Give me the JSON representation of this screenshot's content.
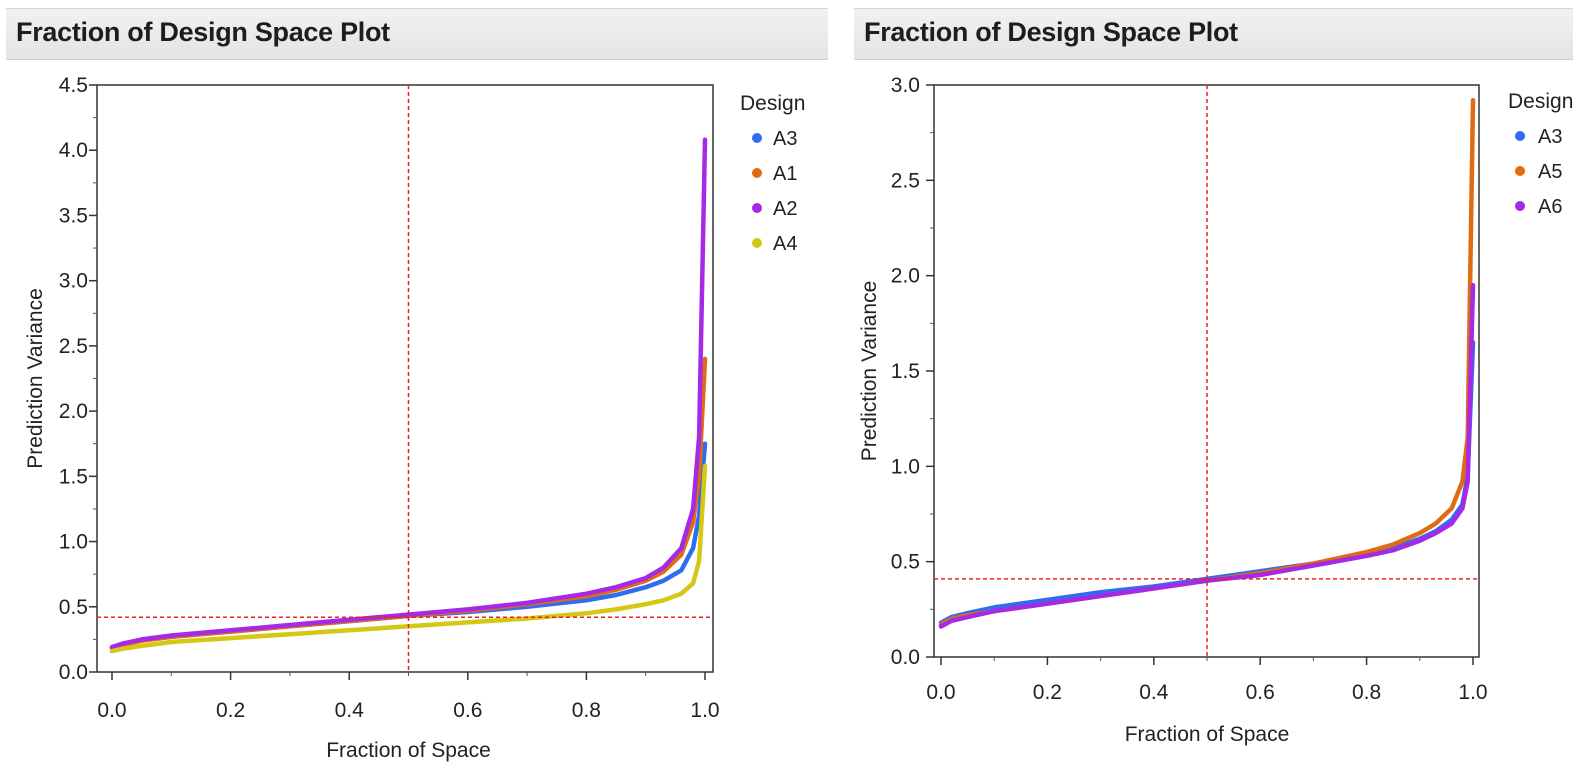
{
  "panels": [
    {
      "title": "Fraction of Design Space Plot"
    },
    {
      "title": "Fraction of Design Space Plot"
    }
  ],
  "chart_data": [
    {
      "type": "line",
      "title": "Fraction of Design Space Plot",
      "xlabel": "Fraction of Space",
      "ylabel": "Prediction Variance",
      "xlim": [
        0,
        1
      ],
      "ylim": [
        0,
        4.5
      ],
      "xticks": [
        "0.0",
        "0.2",
        "0.4",
        "0.6",
        "0.8",
        "1.0"
      ],
      "yticks": [
        "0.0",
        "0.5",
        "1.0",
        "1.5",
        "2.0",
        "2.5",
        "3.0",
        "3.5",
        "4.0",
        "4.5"
      ],
      "legend_title": "Design",
      "legend_position": "right",
      "reference_lines": {
        "x": 0.5,
        "y": 0.42,
        "color": "#e8202a"
      },
      "series": [
        {
          "name": "A3",
          "color": "#2f6df0",
          "x": [
            0,
            0.02,
            0.05,
            0.1,
            0.2,
            0.3,
            0.4,
            0.5,
            0.6,
            0.7,
            0.8,
            0.85,
            0.9,
            0.93,
            0.96,
            0.98,
            0.99,
            1.0
          ],
          "y": [
            0.19,
            0.22,
            0.24,
            0.27,
            0.31,
            0.35,
            0.39,
            0.43,
            0.46,
            0.5,
            0.55,
            0.59,
            0.65,
            0.7,
            0.78,
            0.95,
            1.2,
            1.75
          ]
        },
        {
          "name": "A1",
          "color": "#e06b10",
          "x": [
            0,
            0.02,
            0.05,
            0.1,
            0.2,
            0.3,
            0.4,
            0.5,
            0.6,
            0.7,
            0.8,
            0.85,
            0.9,
            0.93,
            0.96,
            0.98,
            0.99,
            1.0
          ],
          "y": [
            0.18,
            0.21,
            0.24,
            0.27,
            0.31,
            0.35,
            0.39,
            0.43,
            0.47,
            0.52,
            0.58,
            0.63,
            0.7,
            0.77,
            0.9,
            1.15,
            1.5,
            2.4
          ]
        },
        {
          "name": "A2",
          "color": "#a42ae8",
          "x": [
            0,
            0.02,
            0.05,
            0.1,
            0.2,
            0.3,
            0.4,
            0.5,
            0.6,
            0.7,
            0.8,
            0.85,
            0.9,
            0.93,
            0.96,
            0.98,
            0.99,
            1.0
          ],
          "y": [
            0.19,
            0.22,
            0.25,
            0.28,
            0.32,
            0.36,
            0.4,
            0.44,
            0.48,
            0.53,
            0.6,
            0.65,
            0.72,
            0.8,
            0.95,
            1.25,
            1.8,
            4.08
          ]
        },
        {
          "name": "A4",
          "color": "#d4c814",
          "x": [
            0,
            0.02,
            0.05,
            0.1,
            0.2,
            0.3,
            0.4,
            0.5,
            0.6,
            0.7,
            0.8,
            0.85,
            0.9,
            0.93,
            0.96,
            0.98,
            0.99,
            1.0
          ],
          "y": [
            0.16,
            0.18,
            0.2,
            0.23,
            0.26,
            0.29,
            0.32,
            0.35,
            0.38,
            0.41,
            0.45,
            0.48,
            0.52,
            0.55,
            0.6,
            0.68,
            0.85,
            1.58
          ]
        }
      ]
    },
    {
      "type": "line",
      "title": "Fraction of Design Space Plot",
      "xlabel": "Fraction of Space",
      "ylabel": "Prediction Variance",
      "xlim": [
        0,
        1
      ],
      "ylim": [
        0,
        3.0
      ],
      "xticks": [
        "0.0",
        "0.2",
        "0.4",
        "0.6",
        "0.8",
        "1.0"
      ],
      "yticks": [
        "0.0",
        "0.5",
        "1.0",
        "1.5",
        "2.0",
        "2.5",
        "3.0"
      ],
      "legend_title": "Design",
      "legend_position": "right",
      "reference_lines": {
        "x": 0.5,
        "y": 0.41,
        "color": "#e8202a"
      },
      "series": [
        {
          "name": "A3",
          "color": "#2f6df0",
          "x": [
            0,
            0.02,
            0.05,
            0.1,
            0.2,
            0.3,
            0.4,
            0.5,
            0.6,
            0.7,
            0.8,
            0.85,
            0.9,
            0.93,
            0.96,
            0.98,
            0.99,
            1.0
          ],
          "y": [
            0.18,
            0.21,
            0.23,
            0.26,
            0.3,
            0.34,
            0.37,
            0.41,
            0.45,
            0.49,
            0.54,
            0.57,
            0.62,
            0.66,
            0.72,
            0.8,
            0.95,
            1.65
          ]
        },
        {
          "name": "A5",
          "color": "#e06b10",
          "x": [
            0,
            0.02,
            0.05,
            0.1,
            0.2,
            0.3,
            0.4,
            0.5,
            0.6,
            0.7,
            0.8,
            0.85,
            0.9,
            0.93,
            0.96,
            0.98,
            0.99,
            1.0
          ],
          "y": [
            0.17,
            0.2,
            0.22,
            0.24,
            0.28,
            0.32,
            0.36,
            0.4,
            0.44,
            0.49,
            0.55,
            0.59,
            0.65,
            0.7,
            0.78,
            0.92,
            1.15,
            2.92
          ]
        },
        {
          "name": "A6",
          "color": "#a42ae8",
          "x": [
            0,
            0.02,
            0.05,
            0.1,
            0.2,
            0.3,
            0.4,
            0.5,
            0.6,
            0.7,
            0.8,
            0.85,
            0.9,
            0.93,
            0.96,
            0.98,
            0.99,
            1.0
          ],
          "y": [
            0.16,
            0.19,
            0.21,
            0.24,
            0.28,
            0.32,
            0.36,
            0.4,
            0.43,
            0.48,
            0.53,
            0.56,
            0.61,
            0.65,
            0.7,
            0.78,
            0.92,
            1.95
          ]
        }
      ]
    }
  ]
}
